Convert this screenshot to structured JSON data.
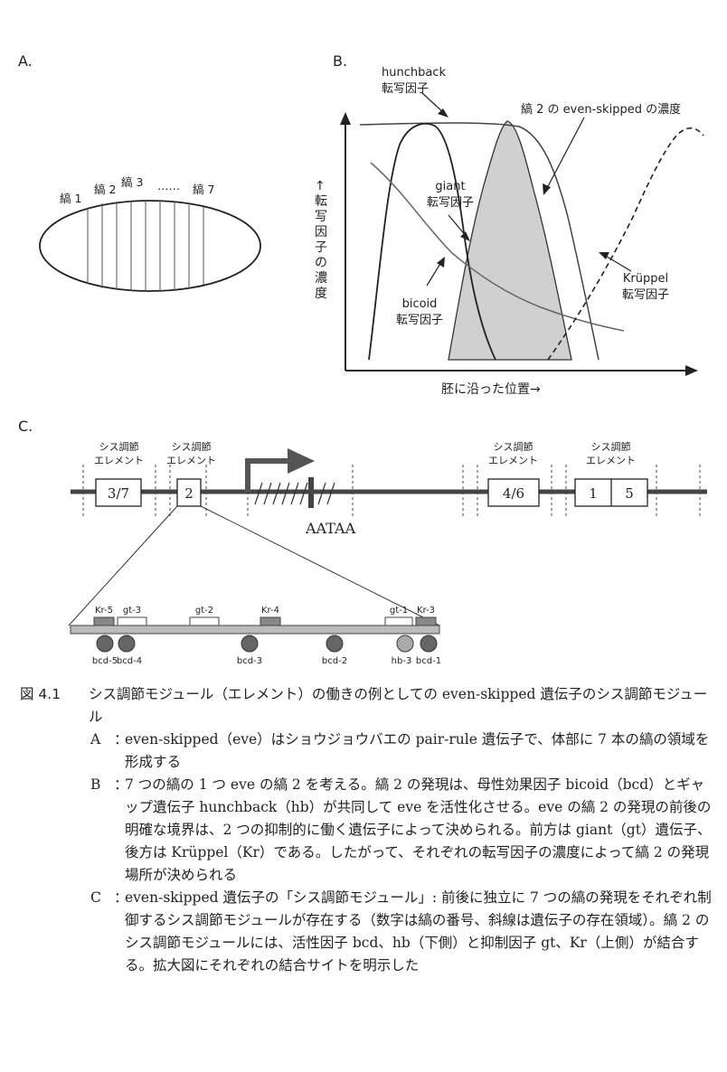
{
  "panel_a": {
    "label": "A.",
    "stripes": [
      "縞 1",
      "縞 2",
      "縞 3",
      "……",
      "縞 7"
    ]
  },
  "panel_b": {
    "label": "B.",
    "y_axis": "↑転写因子の濃度",
    "x_axis": "胚に沿った位置→",
    "hunchback": [
      "hunchback",
      "転写因子"
    ],
    "eve": "縞 2 の even-skipped の濃度",
    "giant": [
      "giant",
      "転写因子"
    ],
    "bicoid": [
      "bicoid",
      "転写因子"
    ],
    "kruppel": [
      "Krüppel",
      "転写因子"
    ]
  },
  "panel_c": {
    "label": "C.",
    "element_label": [
      "シス調節",
      "エレメント"
    ],
    "boxes": [
      "3/7",
      "2",
      "4/6",
      "1",
      "5"
    ],
    "aataa": "AATAA",
    "repressor_sites": [
      "Kr-5",
      "gt-3",
      "gt-2",
      "Kr-4",
      "gt-1",
      "Kr-3"
    ],
    "activator_sites": [
      "bcd-5",
      "bcd-4",
      "bcd-3",
      "bcd-2",
      "hb-3",
      "bcd-1"
    ]
  },
  "caption": {
    "number": "図 4.1",
    "title": "シス調節モジュール（エレメント）の働きの例としての even-skipped 遺伝子のシス調節モジュール",
    "items": [
      {
        "key": "A",
        "text": "even-skipped（eve）はショウジョウバエの pair-rule 遺伝子で、体部に 7 本の縞の領域を形成する"
      },
      {
        "key": "B",
        "text": "7 つの縞の 1 つ eve の縞 2 を考える。縞 2 の発現は、母性効果因子 bicoid（bcd）とギャップ遺伝子 hunchback（hb）が共同して eve を活性化させる。eve の縞 2 の発現の前後の明確な境界は、2 つの抑制的に働く遺伝子によって決められる。前方は giant（gt）遺伝子、後方は Krüppel（Kr）である。したがって、それぞれの転写因子の濃度によって縞 2 の発現場所が決められる"
      },
      {
        "key": "C",
        "text": "even-skipped 遺伝子の「シス調節モジュール」: 前後に独立に 7 つの縞の発現をそれぞれ制御するシス調節モジュールが存在する（数字は縞の番号、斜線は遺伝子の存在領域）。縞 2 のシス調節モジュールには、活性因子 bcd、hb（下側）と抑制因子 gt、Kr（上側）が結合する。拡大図にそれぞれの結合サイトを明示した"
      }
    ]
  }
}
